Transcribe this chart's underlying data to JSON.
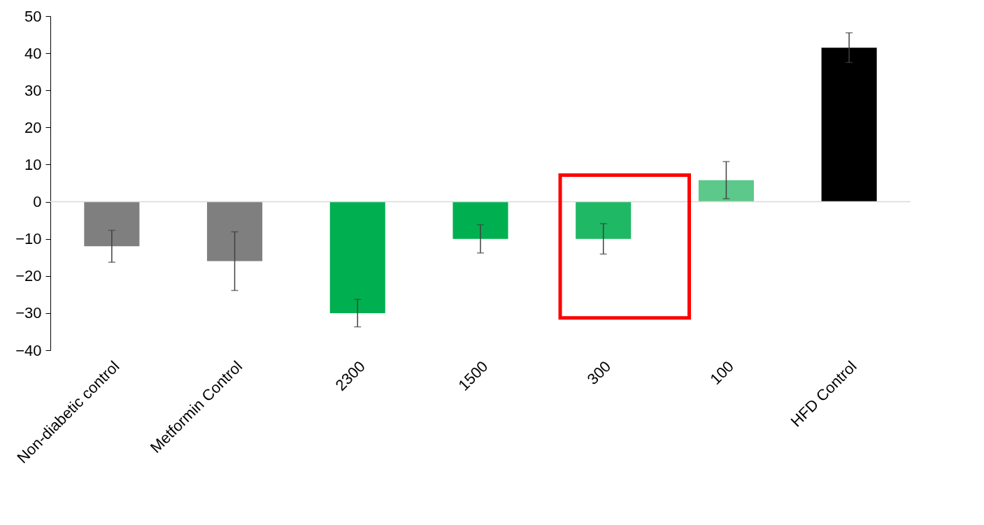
{
  "chart_data": {
    "type": "bar",
    "categories": [
      "Non-diabetic control",
      "Metformin Control",
      "2300",
      "1500",
      "300",
      "100",
      "HFD Control"
    ],
    "values": [
      -12,
      -16,
      -30,
      -10,
      -10,
      5.8,
      41.5
    ],
    "errors": [
      4.3,
      7.9,
      3.7,
      3.8,
      4.1,
      5,
      4
    ],
    "colors": [
      "#7f7f7f",
      "#7f7f7f",
      "#00b050",
      "#00b050",
      "#1fb865",
      "#5cc88a",
      "#000000"
    ],
    "ylim": [
      -40,
      50
    ],
    "yticks": [
      -40,
      -30,
      -20,
      -10,
      0,
      10,
      20,
      30,
      40,
      50
    ],
    "ref_lines": [
      {
        "axis": "y",
        "value": 0,
        "color": "#d9d9d9"
      }
    ],
    "grid": false
  }
}
